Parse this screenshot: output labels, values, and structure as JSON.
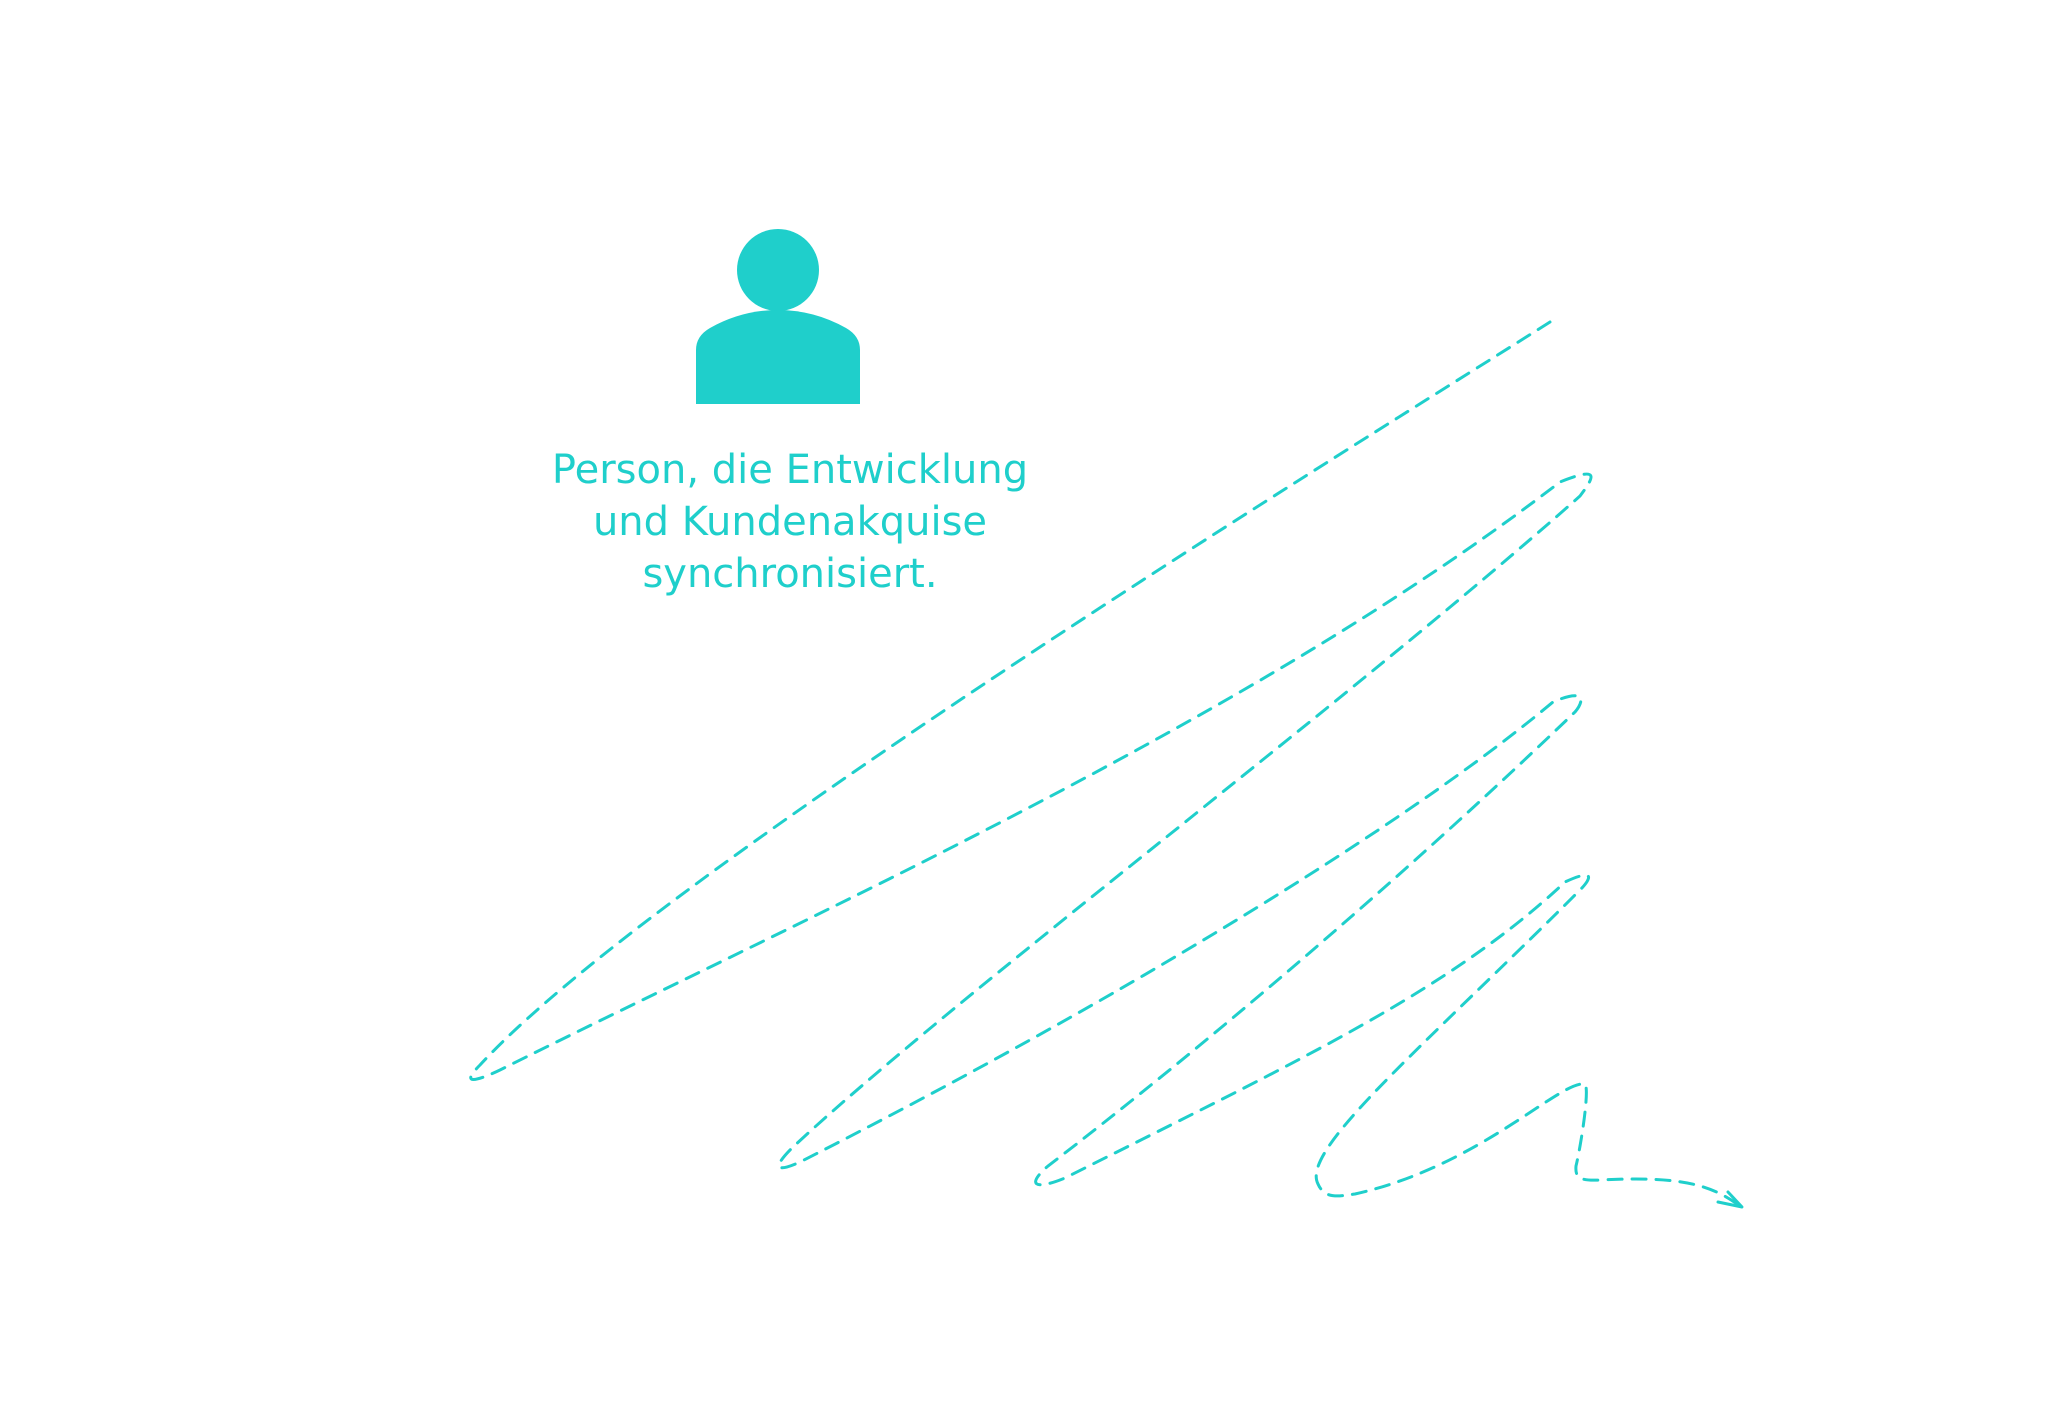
{
  "colors": {
    "accent": "#1fcfcb",
    "background": "#ffffff"
  },
  "icon": "person-icon",
  "caption": {
    "line1": "Person, die Entwicklung",
    "line2": "und Kundenakquise",
    "line3": "synchronisiert."
  }
}
